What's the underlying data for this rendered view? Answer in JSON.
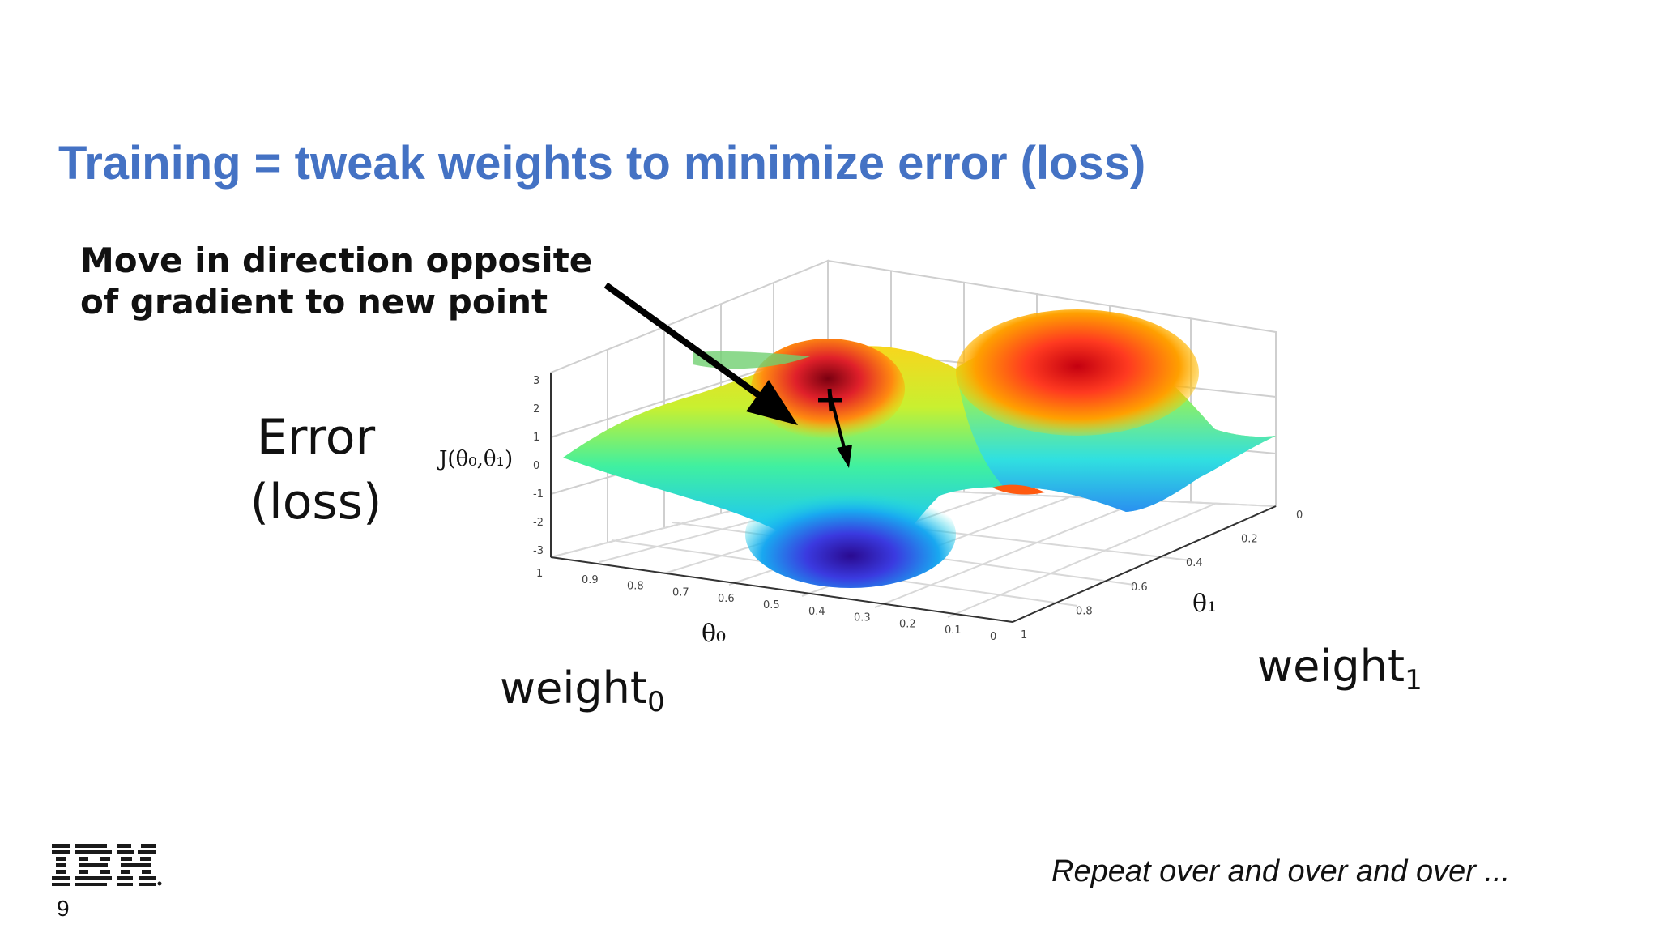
{
  "slide": {
    "title": "Training = tweak weights to minimize error (loss)",
    "annotation_lines": [
      "Move in direction opposite",
      "of gradient to new point"
    ],
    "error_label_lines": [
      "Error",
      "(loss)"
    ],
    "weight0_label": "weight",
    "weight0_sub": "0",
    "weight1_label": "weight",
    "weight1_sub": "1",
    "footer_note": "Repeat over and over and over ...",
    "page_number": "9",
    "logo": "IBM"
  },
  "plot": {
    "z_axis_label": "J(θ₀,θ₁)",
    "x_axis_label": "θ₀",
    "y_axis_label": "θ₁",
    "z_ticks": [
      "3",
      "2",
      "1",
      "0",
      "-1",
      "-2",
      "-3"
    ],
    "x_ticks": [
      "1",
      "0.9",
      "0.8",
      "0.7",
      "0.6",
      "0.5",
      "0.4",
      "0.3",
      "0.2",
      "0.1",
      "0"
    ],
    "y_ticks": [
      "0",
      "0.2",
      "0.4",
      "0.6",
      "0.8",
      "1"
    ]
  }
}
